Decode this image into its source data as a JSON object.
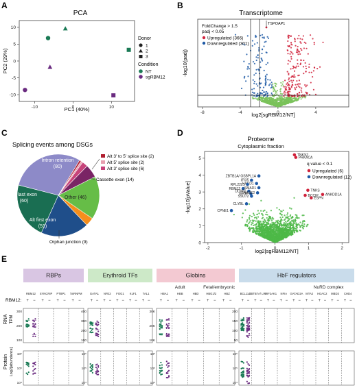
{
  "panels": {
    "a": "A",
    "b": "B",
    "c": "C",
    "d": "D",
    "e": "E"
  },
  "chart_data": [
    {
      "id": "pca",
      "type": "scatter",
      "title": "PCA",
      "xlabel": "PC1 (40%)",
      "ylabel": "PC2 (29%)",
      "xlim": [
        -14,
        16
      ],
      "ylim": [
        -12,
        12
      ],
      "xticks": [
        -10,
        0,
        10
      ],
      "yticks": [
        -10,
        -5,
        0,
        5,
        10
      ],
      "legend_donor_title": "Donor",
      "legend_condition_title": "Condition",
      "donors": [
        "1",
        "2",
        "3"
      ],
      "conditions": [
        {
          "name": "NT",
          "color": "#1a7a55"
        },
        {
          "name": "sgRBM12",
          "color": "#6a2b80"
        }
      ],
      "points": [
        {
          "x": -6.5,
          "y": 6.8,
          "donor": "1",
          "cond": "NT"
        },
        {
          "x": -2,
          "y": 9.6,
          "donor": "2",
          "cond": "NT"
        },
        {
          "x": 14.5,
          "y": 3.3,
          "donor": "3",
          "cond": "NT"
        },
        {
          "x": -12.5,
          "y": -8.6,
          "donor": "1",
          "cond": "sgRBM12"
        },
        {
          "x": -6,
          "y": -1.8,
          "donor": "2",
          "cond": "sgRBM12"
        },
        {
          "x": 10.5,
          "y": -10.2,
          "donor": "3",
          "cond": "sgRBM12"
        }
      ]
    },
    {
      "id": "volcano_rna",
      "type": "scatter",
      "title": "Transcriptome",
      "xlabel": "log2[sgRBM12/NT]",
      "ylabel": "-log10(padj)",
      "xticks": [
        -8,
        -4,
        0,
        4
      ],
      "xlim": [
        -8.5,
        7.5
      ],
      "ylim": [
        0,
        17
      ],
      "note1": "FoldChange > 1.5",
      "note2": "padj < 0.05",
      "series": [
        {
          "name": "Upregulated (366)",
          "color": "#d0223b"
        },
        {
          "name": "Downregulated (301)",
          "color": "#1f5aa6"
        }
      ],
      "label": "TSPOAP1"
    },
    {
      "id": "pie",
      "type": "pie",
      "title": "Splicing events among DSGs",
      "slices": [
        {
          "label": "Intron retention",
          "value": 80,
          "color": "#8d8ac8"
        },
        {
          "label": "Alt 3' to 5' splice site",
          "value": 2,
          "color": "#b01e2f"
        },
        {
          "label": "Alt 5' splice site",
          "value": 2,
          "color": "#e8a0b0"
        },
        {
          "label": "Alt 3' splice site",
          "value": 6,
          "color": "#c7437a"
        },
        {
          "label": "Cassette exon",
          "value": 14,
          "color": "#7a2465"
        },
        {
          "label": "Other",
          "value": 46,
          "color": "#66bd47"
        },
        {
          "label": "Orphan junction",
          "value": 9,
          "color": "#f58e1c"
        },
        {
          "label": "Alt first exon",
          "value": 51,
          "color": "#1f4e8a"
        },
        {
          "label": "Alt last exon",
          "value": 60,
          "color": "#1a6e52"
        }
      ],
      "labels": {
        "intron": "Intron retention",
        "intron_n": "(80)",
        "altlast": "Alt last exon",
        "altlast_n": "(60)",
        "altfirst": "Alt first exon",
        "altfirst_n": "(51)",
        "other": "Other (46)",
        "orphan": "Orphan junction (9)",
        "cassette": "Cassette exon (14)",
        "a35": "Alt 3' to 5' splice site (2)",
        "a5": "Alt 5' splice site (2)",
        "a3": "Alt 3' splice site (6)"
      }
    },
    {
      "id": "volcano_prot",
      "type": "scatter",
      "title": "Proteome",
      "subtitle": "Cytoplasmic fraction",
      "xlabel": "log2[sgRBM12/NT]",
      "ylabel": "-log10[pValue]",
      "xticks": [
        -2,
        -1,
        0,
        1,
        2
      ],
      "yticks": [
        0,
        1,
        2,
        3,
        4,
        5
      ],
      "xlim": [
        -2.1,
        2.2
      ],
      "ylim": [
        0,
        5.4
      ],
      "legend_title": "q value < 0.1",
      "series": [
        {
          "name": "Upregulated (6)",
          "color": "#d0223b"
        },
        {
          "name": "Downregulated (12)",
          "color": "#1f5aa6"
        }
      ],
      "up": [
        {
          "name": "TNKS2",
          "x": 0.58,
          "y": 5.2
        },
        {
          "name": "PRKACA",
          "x": 0.62,
          "y": 5.05
        },
        {
          "name": "TNKS",
          "x": 0.98,
          "y": 3.1
        },
        {
          "name": "BCCIP",
          "x": 0.9,
          "y": 2.8
        },
        {
          "name": "ESPN",
          "x": 1.08,
          "y": 2.65
        },
        {
          "name": "ANKDD1A",
          "x": 1.42,
          "y": 2.85
        }
      ],
      "down": [
        {
          "name": "ZBTB1A/ OSBPL1A",
          "x": -0.48,
          "y": 3.95
        },
        {
          "name": "IFI35",
          "x": -0.7,
          "y": 3.7
        },
        {
          "name": "HACD1",
          "x": -0.55,
          "y": 3.5
        },
        {
          "name": "RPL22L1",
          "x": -0.82,
          "y": 3.45
        },
        {
          "name": "RBM12",
          "x": -0.95,
          "y": 3.2
        },
        {
          "name": "SMAD1",
          "x": -0.48,
          "y": 3.25
        },
        {
          "name": "DDX60",
          "x": -0.78,
          "y": 3.05
        },
        {
          "name": "GLCE",
          "x": -0.72,
          "y": 2.9
        },
        {
          "name": "ENASE2",
          "x": -0.52,
          "y": 2.95
        },
        {
          "name": "SSU72",
          "x": -0.7,
          "y": 2.75
        },
        {
          "name": "CLYBL",
          "x": -0.85,
          "y": 2.3
        },
        {
          "name": "CPNE1",
          "x": -1.3,
          "y": 1.9
        }
      ]
    }
  ],
  "panel_e": {
    "rbm12_label": "RBM12:",
    "signs": [
      "+",
      "−"
    ],
    "row_rna": "RNA",
    "row_rna2": "TPM",
    "row_prot": "Protein",
    "row_prot2": "Log2[abundance]",
    "groups": [
      {
        "title": "RBPs",
        "color": "#d9c6e3",
        "genes": [
          "RBM12",
          "SYNCRIP",
          "PTBP1",
          "hnRNPM"
        ],
        "sub": [],
        "rna_ticks": [
          "300",
          "200",
          "100"
        ],
        "prot_ticks": [
          "10⁶",
          "10⁵",
          "10⁴"
        ]
      },
      {
        "title": "Erythroid TFs",
        "color": "#cde9c8",
        "genes": [
          "GATA1",
          "NFE2",
          "FOG1",
          "KLF1",
          "TAL1"
        ],
        "sub": [],
        "rna_ticks": [
          "400",
          "300",
          "200",
          "100"
        ],
        "prot_ticks": [
          "10⁶",
          "10⁵",
          "10⁴"
        ]
      },
      {
        "title": "Globins",
        "color": "#f3c9d2",
        "genes": [
          "HBA1",
          "HBB",
          "HBD",
          "HBG1/2",
          "HBZ"
        ],
        "sub": [
          "Adult",
          "Fetal/embryonic"
        ],
        "rna_ticks": [
          "30K",
          "20K",
          "10K"
        ],
        "prot_ticks": [
          "10⁶",
          "10⁵",
          "10⁴"
        ],
        "rna_ticks2": [
          "3K",
          "2K",
          "1K"
        ]
      },
      {
        "title": "HbF regulators",
        "color": "#c9dceb",
        "genes": [
          "BCL11A",
          "ZBTB7A/ LRF",
          "EIF2AK1",
          "NFIA",
          "GATAD2A",
          "MTA2",
          "HDAC2",
          "MBD3",
          "CHD4"
        ],
        "sub": [
          "NuRD complex"
        ],
        "rna_ticks": [
          "200",
          "150",
          "100",
          "50"
        ],
        "prot_ticks": [
          "10⁶",
          "10⁵",
          "10⁴"
        ]
      }
    ]
  }
}
